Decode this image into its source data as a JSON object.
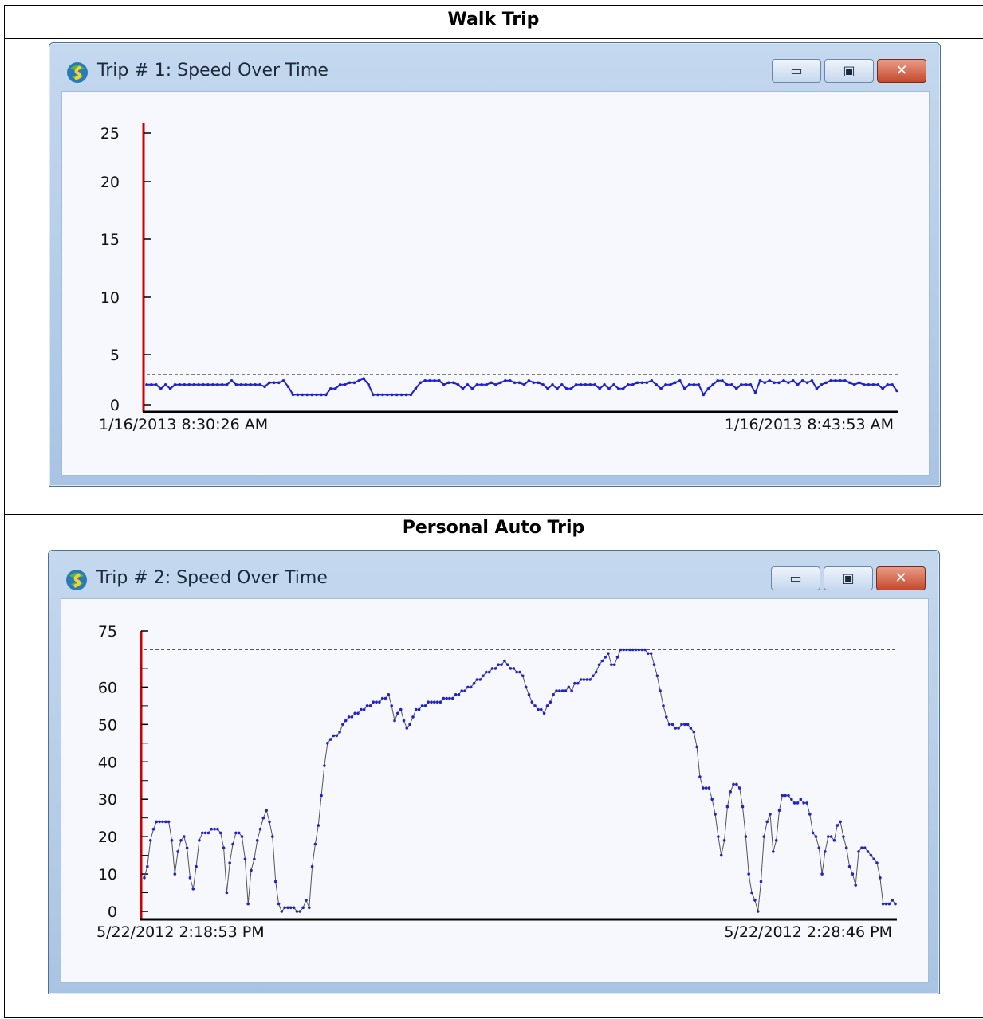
{
  "sections": [
    {
      "heading": "Walk Trip",
      "window": {
        "title": "Trip # 1: Speed Over Time",
        "icon": "globe-app-icon",
        "buttons": {
          "minimize": "minimize-icon",
          "maximize": "maximize-icon",
          "close": "close-icon"
        }
      },
      "chart_data": {
        "type": "line",
        "title": "Trip # 1: Speed Over Time",
        "xlabel": "",
        "ylabel": "",
        "y_ticks": [
          0,
          5,
          10,
          15,
          20,
          25
        ],
        "ylim": [
          0,
          25
        ],
        "x_start_label": "1/16/2013 8:30:26 AM",
        "x_end_label": "1/16/2013 8:43:53 AM",
        "reference_line": 3,
        "line_color": "#2222cc",
        "axis_color": "#cc0000",
        "values": [
          2,
          2,
          2,
          1.6,
          2,
          1.6,
          2,
          2,
          2,
          2,
          2,
          2,
          2,
          2,
          2,
          2,
          2,
          2,
          2.4,
          2,
          2,
          2,
          2,
          2,
          2,
          1.8,
          2.2,
          2.2,
          2.2,
          2.4,
          1.8,
          1,
          1,
          1,
          1,
          1,
          1,
          1,
          1,
          1.6,
          1.6,
          2,
          2,
          2.2,
          2.2,
          2.4,
          2.6,
          2,
          1,
          1,
          1,
          1,
          1,
          1,
          1,
          1,
          1,
          1.6,
          2.2,
          2.4,
          2.4,
          2.4,
          2.4,
          2,
          2.2,
          2.2,
          2,
          1.6,
          2,
          1.6,
          2,
          2,
          2,
          2.2,
          2,
          2.2,
          2.4,
          2.4,
          2.2,
          2.2,
          2,
          2.4,
          2.2,
          2.2,
          2,
          1.6,
          2,
          1.6,
          2,
          1.6,
          1.6,
          2,
          2,
          2,
          2,
          2,
          1.6,
          2,
          1.6,
          2,
          1.6,
          1.6,
          2,
          2,
          2.2,
          2.2,
          2.2,
          2.4,
          2,
          1.6,
          2,
          2,
          2.2,
          2.4,
          1.6,
          2,
          2,
          2,
          1,
          1.6,
          2,
          2.4,
          2.4,
          2,
          2,
          1.6,
          2,
          2,
          2,
          1.2,
          2.4,
          2.2,
          2.4,
          2.2,
          2.2,
          2.4,
          2.2,
          2.4,
          2,
          2.4,
          2.2,
          2.4,
          1.6,
          2,
          2.2,
          2.4,
          2.4,
          2.4,
          2.4,
          2.2,
          2,
          2.2,
          2,
          2,
          2,
          2,
          1.6,
          2,
          2,
          1.4
        ]
      }
    },
    {
      "heading": "Personal Auto Trip",
      "window": {
        "title": "Trip # 2: Speed Over Time",
        "icon": "globe-app-icon",
        "buttons": {
          "minimize": "minimize-icon",
          "maximize": "maximize-icon",
          "close": "close-icon"
        }
      },
      "chart_data": {
        "type": "line",
        "title": "Trip # 2: Speed Over Time",
        "xlabel": "",
        "ylabel": "",
        "y_ticks": [
          0,
          10,
          20,
          30,
          40,
          50,
          60,
          75
        ],
        "ylim": [
          0,
          75
        ],
        "x_start_label": "5/22/2012 2:18:53 PM",
        "x_end_label": "5/22/2012 2:28:46 PM",
        "reference_line": 70,
        "line_color": "#2222cc",
        "axis_color": "#cc0000",
        "values": [
          9,
          12,
          19,
          22,
          24,
          24,
          24,
          24,
          24,
          19,
          10,
          16,
          19,
          20,
          17,
          9,
          6,
          12,
          19,
          21,
          21,
          21,
          22,
          22,
          22,
          21,
          17,
          5,
          13,
          18,
          21,
          21,
          20,
          14,
          2,
          11,
          14,
          19,
          22,
          25,
          27,
          24,
          20,
          8,
          2,
          0,
          1,
          1,
          1,
          1,
          0,
          0,
          1,
          3,
          1,
          12,
          18,
          23,
          31,
          39,
          45,
          46,
          47,
          47,
          48,
          50,
          51,
          52,
          52,
          53,
          53,
          54,
          54,
          55,
          55,
          56,
          56,
          56,
          57,
          57,
          58,
          55,
          51,
          53,
          54,
          51,
          49,
          50,
          52,
          54,
          54,
          55,
          55,
          56,
          56,
          56,
          56,
          56,
          57,
          57,
          57,
          57,
          58,
          58,
          59,
          59,
          60,
          60,
          61,
          62,
          62,
          63,
          64,
          64,
          65,
          65,
          66,
          66,
          67,
          66,
          65,
          65,
          64,
          64,
          63,
          60,
          58,
          56,
          55,
          54,
          54,
          53,
          55,
          56,
          58,
          59,
          59,
          59,
          59,
          60,
          59,
          61,
          61,
          62,
          62,
          62,
          62,
          63,
          64,
          66,
          67,
          68,
          69,
          66,
          66,
          68,
          70,
          70,
          70,
          70,
          70,
          70,
          70,
          70,
          70,
          69,
          69,
          66,
          63,
          59,
          55,
          52,
          50,
          50,
          49,
          49,
          50,
          50,
          50,
          49,
          48,
          44,
          36,
          33,
          33,
          33,
          30,
          26,
          20,
          15,
          19,
          28,
          32,
          34,
          34,
          33,
          28,
          20,
          10,
          5,
          3,
          0,
          8,
          20,
          24,
          26,
          16,
          19,
          27,
          31,
          31,
          31,
          30,
          29,
          29,
          30,
          29,
          29,
          26,
          21,
          20,
          17,
          10,
          16,
          20,
          20,
          19,
          23,
          24,
          20,
          17,
          12,
          10,
          7,
          16,
          17,
          17,
          16,
          15,
          14,
          13,
          9,
          2,
          2,
          2,
          3,
          2
        ]
      }
    }
  ]
}
